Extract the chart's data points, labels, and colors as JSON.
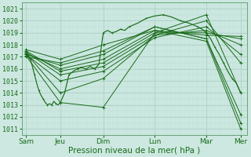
{
  "xlabel": "Pression niveau de la mer( hPa )",
  "bg_color": "#cce8e0",
  "grid_color_major": "#aaccc4",
  "grid_color_minor": "#bbddd6",
  "line_color": "#1a6b1a",
  "ylim": [
    1010.5,
    1021.5
  ],
  "yticks": [
    1011,
    1012,
    1013,
    1014,
    1015,
    1016,
    1017,
    1018,
    1019,
    1020,
    1021
  ],
  "xtick_labels": [
    "Sam",
    "Jeu",
    "Dim",
    "Lun",
    "Mar",
    "Mer"
  ],
  "xtick_positions": [
    0.0,
    0.8,
    1.8,
    3.0,
    4.2,
    5.0
  ],
  "series": [
    {
      "x": [
        0.0,
        0.8,
        1.8,
        3.0,
        4.2,
        5.0
      ],
      "y": [
        1017.1,
        1013.2,
        1012.8,
        1019.0,
        1020.5,
        1014.0
      ]
    },
    {
      "x": [
        0.0,
        0.8,
        1.8,
        3.0,
        4.2,
        5.0
      ],
      "y": [
        1017.3,
        1014.0,
        1015.2,
        1018.8,
        1020.0,
        1016.5
      ]
    },
    {
      "x": [
        0.0,
        0.8,
        1.8,
        3.0,
        4.2,
        5.0
      ],
      "y": [
        1017.2,
        1015.0,
        1015.8,
        1018.6,
        1019.5,
        1017.2
      ]
    },
    {
      "x": [
        0.0,
        0.8,
        1.8,
        3.0,
        4.2,
        5.0
      ],
      "y": [
        1017.4,
        1015.5,
        1016.2,
        1018.8,
        1019.2,
        1018.0
      ]
    },
    {
      "x": [
        0.0,
        0.8,
        1.8,
        3.0,
        4.2,
        5.0
      ],
      "y": [
        1017.5,
        1015.8,
        1016.5,
        1019.0,
        1019.0,
        1018.5
      ]
    },
    {
      "x": [
        0.0,
        0.8,
        1.8,
        3.0,
        4.2,
        5.0
      ],
      "y": [
        1017.3,
        1016.0,
        1016.8,
        1019.2,
        1018.8,
        1018.7
      ]
    },
    {
      "x": [
        0.0,
        0.8,
        1.8,
        3.0,
        4.2,
        5.0
      ],
      "y": [
        1017.2,
        1016.3,
        1017.2,
        1019.5,
        1018.5,
        1012.2
      ]
    },
    {
      "x": [
        0.0,
        0.8,
        1.8,
        3.0,
        4.2,
        5.0
      ],
      "y": [
        1017.0,
        1016.5,
        1017.5,
        1019.5,
        1018.5,
        1011.5
      ]
    },
    {
      "x": [
        0.0,
        0.8,
        1.8,
        3.0,
        4.2,
        5.0
      ],
      "y": [
        1017.6,
        1016.8,
        1018.0,
        1019.2,
        1018.3,
        1011.0
      ]
    }
  ],
  "detailed_series": [
    {
      "x": [
        0.0,
        0.05,
        0.1,
        0.15,
        0.2,
        0.25,
        0.3,
        0.35,
        0.4,
        0.45,
        0.5,
        0.55,
        0.6,
        0.65,
        0.7,
        0.75,
        0.8,
        0.9,
        1.0,
        1.1,
        1.2,
        1.3,
        1.4,
        1.5,
        1.6,
        1.7,
        1.8,
        1.9,
        2.0,
        2.1,
        2.2,
        2.3,
        2.4,
        2.6,
        2.8,
        3.0,
        3.2,
        3.4,
        3.6,
        3.8,
        4.0,
        4.1,
        4.2,
        4.3,
        4.4,
        4.5,
        4.6,
        4.7,
        4.8,
        4.9,
        5.0
      ],
      "y": [
        1017.2,
        1017.0,
        1016.8,
        1016.2,
        1015.5,
        1014.8,
        1014.2,
        1013.8,
        1013.5,
        1013.2,
        1013.0,
        1013.1,
        1013.0,
        1013.3,
        1013.1,
        1013.0,
        1013.2,
        1014.0,
        1015.5,
        1015.8,
        1016.0,
        1016.1,
        1016.0,
        1016.2,
        1016.0,
        1016.4,
        1019.0,
        1019.2,
        1019.0,
        1019.1,
        1019.3,
        1019.2,
        1019.5,
        1019.8,
        1020.2,
        1020.4,
        1020.5,
        1020.3,
        1020.0,
        1019.8,
        1019.5,
        1019.3,
        1019.0,
        1018.5,
        1017.8,
        1017.2,
        1016.5,
        1015.8,
        1015.2,
        1014.8,
        1014.0
      ]
    }
  ],
  "marker": "+",
  "markersize": 2.5,
  "linewidth": 0.7,
  "fontsize_xlabel": 7.5,
  "fontsize_yticks": 6,
  "fontsize_xticks": 6.5
}
